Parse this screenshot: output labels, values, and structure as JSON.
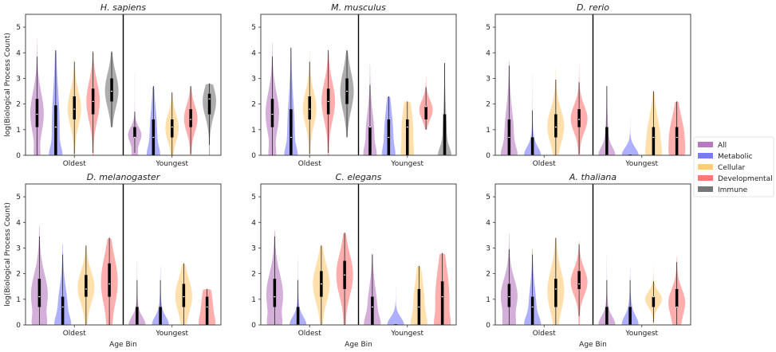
{
  "chart_data": [
    {
      "type": "violin",
      "title": "H. sapiens",
      "ylabel": "log(Biological Process Count)",
      "xlabel": "",
      "ylim": [
        0,
        5.5
      ],
      "yticks": [
        0,
        1,
        2,
        3,
        4,
        5
      ],
      "categories": [
        "Oldest",
        "Youngest"
      ],
      "groups": {
        "Oldest": [
          {
            "series": "All",
            "min": 0,
            "max": 4.6,
            "q1": 1.1,
            "median": 1.6,
            "q3": 2.2,
            "z": 0.25
          },
          {
            "series": "Metabolic",
            "min": 0,
            "max": 4.1,
            "q1": 0,
            "median": 1.1,
            "q3": 1.95,
            "z": 0.5
          },
          {
            "series": "Cellular",
            "min": 0,
            "max": 3.8,
            "q1": 1.4,
            "median": 1.8,
            "q3": 2.3,
            "z": 0.05
          },
          {
            "series": "Developmental",
            "min": 0,
            "max": 4.05,
            "q1": 1.6,
            "median": 2.1,
            "q3": 2.6,
            "z": 0.05
          },
          {
            "series": "Immune",
            "min": 1.1,
            "max": 4.05,
            "q1": 2.1,
            "median": 2.5,
            "q3": 3.0,
            "z": 0
          }
        ],
        "Youngest": [
          {
            "series": "All",
            "min": 0,
            "max": 3.2,
            "q1": 0.7,
            "median": 0.7,
            "q3": 1.1,
            "z": 0.3
          },
          {
            "series": "Metabolic",
            "min": 0,
            "max": 2.7,
            "q1": 0,
            "median": 0.7,
            "q3": 1.4,
            "z": 0.5
          },
          {
            "series": "Cellular",
            "min": 0,
            "max": 2.5,
            "q1": 0.7,
            "median": 1.1,
            "q3": 1.4,
            "z": 0.05
          },
          {
            "series": "Developmental",
            "min": 0,
            "max": 2.7,
            "q1": 1.1,
            "median": 1.4,
            "q3": 1.8,
            "z": 0.05
          },
          {
            "series": "Immune",
            "min": 0,
            "max": 2.8,
            "q1": 1.6,
            "median": 2.2,
            "q3": 2.4,
            "z": 0.05
          }
        ]
      }
    },
    {
      "type": "violin",
      "title": "M. musculus",
      "ylabel": "",
      "xlabel": "",
      "ylim": [
        0,
        5.5
      ],
      "yticks": [
        0,
        1,
        2,
        3,
        4,
        5
      ],
      "categories": [
        "Oldest",
        "Youngest"
      ],
      "groups": {
        "Oldest": [
          {
            "series": "All",
            "min": 0,
            "max": 4.4,
            "q1": 1.1,
            "median": 1.6,
            "q3": 2.2,
            "z": 0.3
          },
          {
            "series": "Metabolic",
            "min": 0,
            "max": 4.2,
            "q1": 0,
            "median": 0.7,
            "q3": 1.8,
            "z": 0.5
          },
          {
            "series": "Cellular",
            "min": 0,
            "max": 4.1,
            "q1": 1.4,
            "median": 1.8,
            "q3": 2.3,
            "z": 0.05
          },
          {
            "series": "Developmental",
            "min": 0,
            "max": 4.1,
            "q1": 1.6,
            "median": 2.1,
            "q3": 2.6,
            "z": 0.05
          },
          {
            "series": "Immune",
            "min": 0.7,
            "max": 4.1,
            "q1": 2.0,
            "median": 2.5,
            "q3": 3.0,
            "z": 0
          }
        ],
        "Youngest": [
          {
            "series": "All",
            "min": 0,
            "max": 3.6,
            "q1": 0,
            "median": 1.1,
            "q3": 1.1,
            "z": 0.5
          },
          {
            "series": "Metabolic",
            "min": 0,
            "max": 2.3,
            "q1": 0,
            "median": 0.7,
            "q3": 1.4,
            "z": 0.4
          },
          {
            "series": "Cellular",
            "min": 0,
            "max": 2.1,
            "q1": 0,
            "median": 1.1,
            "q3": 1.4,
            "z": 0.3
          },
          {
            "series": "Developmental",
            "min": 1.0,
            "max": 3.1,
            "q1": 1.4,
            "median": 1.9,
            "q3": 1.9,
            "z": 0
          },
          {
            "series": "Immune",
            "min": 0,
            "max": 3.6,
            "q1": 0,
            "median": 0,
            "q3": 1.6,
            "z": 0.7
          }
        ]
      }
    },
    {
      "type": "violin",
      "title": "D. rerio",
      "ylabel": "",
      "xlabel": "",
      "ylim": [
        0,
        5.5
      ],
      "yticks": [
        0,
        1,
        2,
        3,
        4,
        5
      ],
      "categories": [
        "Oldest",
        "Youngest"
      ],
      "groups": {
        "Oldest": [
          {
            "series": "All",
            "min": 0,
            "max": 3.7,
            "q1": 0,
            "median": 0.7,
            "q3": 1.4,
            "z": 0.5
          },
          {
            "series": "Metabolic",
            "min": 0,
            "max": 3.5,
            "q1": 0,
            "median": 0,
            "q3": 0.7,
            "z": 0.8
          },
          {
            "series": "Cellular",
            "min": 0,
            "max": 3.4,
            "q1": 0.7,
            "median": 1.1,
            "q3": 1.6,
            "z": 0.05
          },
          {
            "series": "Developmental",
            "min": 0,
            "max": 3.6,
            "q1": 1.1,
            "median": 1.4,
            "q3": 1.8,
            "z": 0.05
          }
        ],
        "Youngest": [
          {
            "series": "All",
            "min": 0,
            "max": 2.7,
            "q1": 0,
            "median": 0,
            "q3": 1.1,
            "z": 0.8
          },
          {
            "series": "Metabolic",
            "min": 0,
            "max": 2.2,
            "q1": 0,
            "median": 0,
            "q3": 0,
            "z": 0.9
          },
          {
            "series": "Cellular",
            "min": 0,
            "max": 2.5,
            "q1": 0,
            "median": 0.7,
            "q3": 1.1,
            "z": 0.3
          },
          {
            "series": "Developmental",
            "min": 0,
            "max": 2.1,
            "q1": 0,
            "median": 0.7,
            "q3": 1.1,
            "z": 0.2
          }
        ]
      }
    },
    {
      "type": "violin",
      "title": "D. melanogaster",
      "ylabel": "log(Biological Process Count)",
      "xlabel": "Age Bin",
      "ylim": [
        0,
        5.5
      ],
      "yticks": [
        0,
        1,
        2,
        3,
        4,
        5
      ],
      "categories": [
        "Oldest",
        "Youngest"
      ],
      "groups": {
        "Oldest": [
          {
            "series": "All",
            "min": 0,
            "max": 3.9,
            "q1": 0.7,
            "median": 1.1,
            "q3": 1.8,
            "z": 0.35
          },
          {
            "series": "Metabolic",
            "min": 0,
            "max": 3.2,
            "q1": 0,
            "median": 0.7,
            "q3": 1.1,
            "z": 0.5
          },
          {
            "series": "Cellular",
            "min": 0,
            "max": 3.1,
            "q1": 1.1,
            "median": 1.4,
            "q3": 1.95,
            "z": 0.05
          },
          {
            "series": "Developmental",
            "min": 0,
            "max": 3.4,
            "q1": 1.1,
            "median": 1.6,
            "q3": 2.4,
            "z": 0.1
          }
        ],
        "Youngest": [
          {
            "series": "All",
            "min": 0,
            "max": 2.5,
            "q1": 0,
            "median": 0,
            "q3": 0.7,
            "z": 0.85
          },
          {
            "series": "Metabolic",
            "min": 0,
            "max": 2.3,
            "q1": 0,
            "median": 0,
            "q3": 0.7,
            "z": 0.8
          },
          {
            "series": "Cellular",
            "min": 0,
            "max": 2.4,
            "q1": 0.7,
            "median": 1.1,
            "q3": 1.6,
            "z": 0.05
          },
          {
            "series": "Developmental",
            "min": 0,
            "max": 1.4,
            "q1": 0,
            "median": 0.7,
            "q3": 1.1,
            "z": 0.4
          }
        ]
      }
    },
    {
      "type": "violin",
      "title": "C. elegans",
      "ylabel": "",
      "xlabel": "Age Bin",
      "ylim": [
        0,
        5.5
      ],
      "yticks": [
        0,
        1,
        2,
        3,
        4,
        5
      ],
      "categories": [
        "Oldest",
        "Youngest"
      ],
      "groups": {
        "Oldest": [
          {
            "series": "All",
            "min": 0,
            "max": 3.7,
            "q1": 0.7,
            "median": 1.1,
            "q3": 1.8,
            "z": 0.35
          },
          {
            "series": "Metabolic",
            "min": 0,
            "max": 2.8,
            "q1": 0,
            "median": 0,
            "q3": 0.7,
            "z": 0.85
          },
          {
            "series": "Cellular",
            "min": 0,
            "max": 3.1,
            "q1": 1.1,
            "median": 1.6,
            "q3": 2.1,
            "z": 0.05
          },
          {
            "series": "Developmental",
            "min": 0,
            "max": 3.6,
            "q1": 1.4,
            "median": 1.95,
            "q3": 2.5,
            "z": 0.05
          }
        ],
        "Youngest": [
          {
            "series": "All",
            "min": 0,
            "max": 2.8,
            "q1": 0,
            "median": 0.7,
            "q3": 1.1,
            "z": 0.5
          },
          {
            "series": "Metabolic",
            "min": 0,
            "max": 1.95,
            "q1": 0,
            "median": 0,
            "q3": 0,
            "z": 0.9
          },
          {
            "series": "Cellular",
            "min": 0,
            "max": 2.3,
            "q1": 0,
            "median": 0.7,
            "q3": 1.4,
            "z": 0.4
          },
          {
            "series": "Developmental",
            "min": 0,
            "max": 2.8,
            "q1": 0,
            "median": 1.1,
            "q3": 1.7,
            "z": 0.3
          }
        ]
      }
    },
    {
      "type": "violin",
      "title": "A. thaliana",
      "ylabel": "",
      "xlabel": "Age Bin",
      "ylim": [
        0,
        5.5
      ],
      "yticks": [
        0,
        1,
        2,
        3,
        4,
        5
      ],
      "categories": [
        "Oldest",
        "Youngest"
      ],
      "groups": {
        "Oldest": [
          {
            "series": "All",
            "min": 0,
            "max": 3.6,
            "q1": 0.7,
            "median": 1.1,
            "q3": 1.6,
            "z": 0.35
          },
          {
            "series": "Metabolic",
            "min": 0,
            "max": 3.0,
            "q1": 0,
            "median": 0.7,
            "q3": 1.1,
            "z": 0.6
          },
          {
            "series": "Cellular",
            "min": 0,
            "max": 3.4,
            "q1": 0.7,
            "median": 1.4,
            "q3": 1.8,
            "z": 0.05
          },
          {
            "series": "Developmental",
            "min": 0,
            "max": 3.3,
            "q1": 1.4,
            "median": 1.6,
            "q3": 2.1,
            "z": 0.05
          }
        ],
        "Youngest": [
          {
            "series": "All",
            "min": 0,
            "max": 2.8,
            "q1": 0,
            "median": 0,
            "q3": 0.7,
            "z": 0.8
          },
          {
            "series": "Metabolic",
            "min": 0,
            "max": 2.2,
            "q1": 0,
            "median": 0,
            "q3": 0.7,
            "z": 0.7
          },
          {
            "series": "Cellular",
            "min": 0,
            "max": 2.4,
            "q1": 0.7,
            "median": 1.1,
            "q3": 1.1,
            "z": 0.05
          },
          {
            "series": "Developmental",
            "min": 0,
            "max": 2.7,
            "q1": 0.7,
            "median": 0.7,
            "q3": 1.4,
            "z": 0.2
          }
        ]
      }
    }
  ],
  "legend": {
    "placement": "right",
    "entries": [
      {
        "label": "All",
        "color": "#b77ac0"
      },
      {
        "label": "Metabolic",
        "color": "#7a7aff"
      },
      {
        "label": "Cellular",
        "color": "#ffcc77"
      },
      {
        "label": "Developmental",
        "color": "#ff7777"
      },
      {
        "label": "Immune",
        "color": "#777777"
      }
    ]
  }
}
